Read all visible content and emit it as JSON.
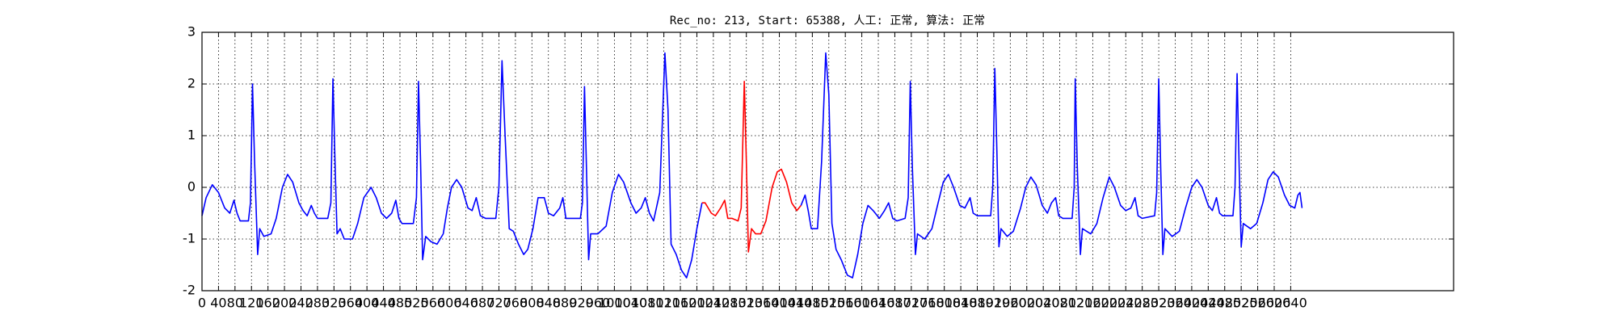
{
  "chart_data": {
    "type": "line",
    "title": "Rec_no: 213, Start: 65388, 人工: 正常, 算法: 正常",
    "xlim": [
      0,
      3035
    ],
    "ylim": [
      -2,
      3
    ],
    "xticks": [
      0,
      40,
      80,
      120,
      160,
      200,
      240,
      280,
      320,
      360,
      400,
      440,
      480,
      520,
      560,
      600,
      640,
      680,
      720,
      760,
      800,
      840,
      880,
      920,
      960,
      1000,
      1040,
      1080,
      1120,
      1160,
      1200,
      1240,
      1280,
      1320,
      1360,
      1400,
      1440,
      1480,
      1520,
      1560,
      1600,
      1640,
      1680,
      1720,
      1760,
      1800,
      1840,
      1880,
      1920,
      1960,
      2000,
      2040,
      2080,
      2120,
      2160,
      2200,
      2240,
      2280,
      2320,
      2360,
      2400,
      2440,
      2480,
      2520,
      2560,
      2600,
      2640
    ],
    "yticks": [
      -2,
      -1,
      0,
      1,
      2,
      3
    ],
    "grid": true,
    "series": [
      {
        "color": "#0000ff",
        "x": [
          0,
          10,
          25,
          40,
          55,
          67.5,
          77.5,
          85,
          92.5,
          112.5,
          117.5,
          122.5,
          127.5,
          135,
          140,
          150,
          167.5,
          180,
          195,
          207.5,
          220,
          235,
          245,
          255,
          265,
          272.5,
          280,
          305,
          312.5,
          317.5,
          322.5,
          327.5,
          335,
          345,
          365,
          377.5,
          392.5,
          410,
          422.5,
          435,
          447.5,
          460,
          470,
          477.5,
          485,
          512.5,
          520,
          525,
          530,
          535,
          542.5,
          555,
          570,
          585,
          595,
          605,
          617.5,
          630,
          645,
          655,
          665,
          675,
          687.5,
          712.5,
          720,
          727.5,
          735,
          745,
          755,
          767.5,
          780,
          790,
          802.5,
          815,
          830,
          840,
          852.5,
          867.5,
          875,
          882.5,
          892.5,
          917.5,
          922.5,
          927.5,
          932.5,
          937.5,
          942.5,
          960,
          980,
          995,
          1010,
          1022.5,
          1040,
          1052.5,
          1065,
          1075,
          1085,
          1095,
          1110,
          1122.5,
          1130,
          1137.5,
          1150,
          1162.5,
          1175,
          1187.5,
          1200,
          1212.5
        ],
        "values": [
          -0.55,
          -0.2,
          0.05,
          -0.1,
          -0.4,
          -0.5,
          -0.25,
          -0.5,
          -0.65,
          -0.65,
          -0.3,
          2.0,
          0.5,
          -1.3,
          -0.8,
          -0.95,
          -0.9,
          -0.6,
          0.0,
          0.25,
          0.1,
          -0.3,
          -0.45,
          -0.55,
          -0.35,
          -0.5,
          -0.6,
          -0.6,
          -0.3,
          2.1,
          0.5,
          -0.9,
          -0.8,
          -1.0,
          -1.0,
          -0.7,
          -0.2,
          0.0,
          -0.2,
          -0.5,
          -0.6,
          -0.5,
          -0.25,
          -0.6,
          -0.7,
          -0.7,
          -0.2,
          2.05,
          0.5,
          -1.4,
          -0.95,
          -1.05,
          -1.1,
          -0.9,
          -0.4,
          0.0,
          0.15,
          0.0,
          -0.4,
          -0.45,
          -0.2,
          -0.55,
          -0.6,
          -0.6,
          0.0,
          2.45,
          1.0,
          -0.8,
          -0.85,
          -1.1,
          -1.3,
          -1.2,
          -0.8,
          -0.2,
          -0.2,
          -0.5,
          -0.55,
          -0.4,
          -0.2,
          -0.6,
          -0.6,
          -0.6,
          -0.3,
          1.95,
          0.3,
          -1.4,
          -0.9,
          -0.9,
          -0.75,
          -0.1,
          0.25,
          0.1,
          -0.3,
          -0.5,
          -0.4,
          -0.2,
          -0.5,
          -0.65,
          -0.1,
          2.6,
          1.5,
          -1.1,
          -1.3,
          -1.6,
          -1.75,
          -1.4,
          -0.8,
          -0.3
        ]
      },
      {
        "color": "#ff0000",
        "x": [
          1212.5,
          1220,
          1235,
          1245,
          1257.5,
          1267.5,
          1275,
          1285,
          1300,
          1307.5,
          1315,
          1320,
          1325,
          1332.5,
          1342.5,
          1355,
          1367.5,
          1382.5,
          1395,
          1405,
          1417.5,
          1430,
          1442.5,
          1452.5
        ],
        "values": [
          -0.3,
          -0.3,
          -0.5,
          -0.55,
          -0.4,
          -0.25,
          -0.6,
          -0.6,
          -0.65,
          -0.4,
          2.05,
          0.5,
          -1.25,
          -0.8,
          -0.9,
          -0.9,
          -0.65,
          0.0,
          0.3,
          0.35,
          0.1,
          -0.3,
          -0.45,
          -0.35
        ]
      },
      {
        "color": "#0000ff",
        "x": [
          1452.5,
          1462.5,
          1470,
          1477.5,
          1492.5,
          1502.5,
          1512.5,
          1520,
          1527.5,
          1537.5,
          1550,
          1565,
          1577.5,
          1590,
          1602.5,
          1615,
          1627.5,
          1642.5,
          1655,
          1665,
          1675,
          1685,
          1705,
          1712.5,
          1717.5,
          1722.5,
          1730,
          1735,
          1752.5,
          1770,
          1785,
          1797.5,
          1810,
          1822.5,
          1837.5,
          1850,
          1862.5,
          1870,
          1880,
          1912.5,
          1917.5,
          1922.5,
          1927.5,
          1932.5,
          1937.5,
          1952.5,
          1967.5,
          1985,
          1997.5,
          2010,
          2022.5,
          2037.5,
          2050,
          2060,
          2070,
          2077.5,
          2087.5,
          2110,
          2115,
          2117.5,
          2122.5,
          2130,
          2135,
          2155,
          2170,
          2185,
          2200,
          2212.5,
          2227.5,
          2240,
          2252.5,
          2262.5,
          2270,
          2280,
          2310,
          2315,
          2320,
          2325,
          2330,
          2335,
          2352.5,
          2370,
          2385,
          2400,
          2412.5,
          2425,
          2440,
          2450,
          2460,
          2467.5,
          2475,
          2500,
          2505,
          2510,
          2515,
          2520,
          2525,
          2542.5,
          2557.5,
          2572.5,
          2585,
          2597.5,
          2610,
          2625,
          2637.5,
          2650,
          2657.5,
          2662.5,
          2667.5
        ],
        "values": [
          -0.35,
          -0.15,
          -0.45,
          -0.8,
          -0.8,
          0.5,
          2.6,
          1.8,
          -0.7,
          -1.2,
          -1.4,
          -1.7,
          -1.75,
          -1.3,
          -0.7,
          -0.35,
          -0.45,
          -0.6,
          -0.45,
          -0.3,
          -0.6,
          -0.65,
          -0.6,
          -0.2,
          2.05,
          0.4,
          -1.3,
          -0.9,
          -1.0,
          -0.8,
          -0.3,
          0.1,
          0.25,
          0.0,
          -0.35,
          -0.4,
          -0.2,
          -0.5,
          -0.55,
          -0.55,
          0.0,
          2.3,
          0.7,
          -1.15,
          -0.8,
          -0.95,
          -0.85,
          -0.4,
          0.0,
          0.2,
          0.05,
          -0.35,
          -0.5,
          -0.3,
          -0.2,
          -0.55,
          -0.6,
          -0.6,
          0.0,
          2.1,
          0.4,
          -1.3,
          -0.8,
          -0.9,
          -0.7,
          -0.2,
          0.2,
          0.0,
          -0.35,
          -0.45,
          -0.4,
          -0.2,
          -0.55,
          -0.6,
          -0.55,
          -0.1,
          2.1,
          0.3,
          -1.3,
          -0.8,
          -0.95,
          -0.85,
          -0.4,
          0.0,
          0.15,
          0.0,
          -0.35,
          -0.45,
          -0.2,
          -0.5,
          -0.55,
          -0.55,
          0.0,
          2.2,
          0.4,
          -1.15,
          -0.7,
          -0.8,
          -0.7,
          -0.3,
          0.15,
          0.3,
          0.2,
          -0.15,
          -0.35,
          -0.4,
          -0.15,
          -0.1,
          -0.4
        ]
      }
    ]
  }
}
